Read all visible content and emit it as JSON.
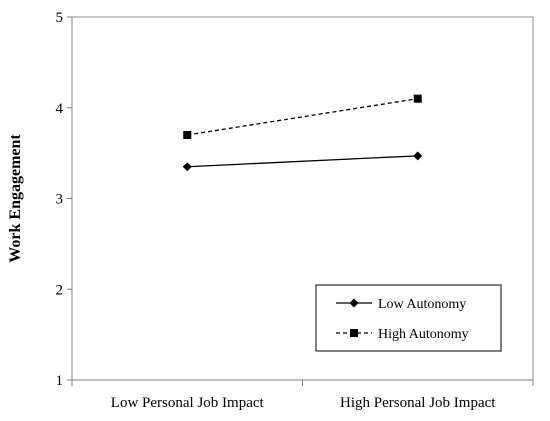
{
  "chart_data": {
    "type": "line",
    "title": "",
    "xlabel": "",
    "ylabel": "Work Engagement",
    "categories": [
      "Low Personal Job Impact",
      "High Personal Job Impact"
    ],
    "ylim": [
      1,
      5
    ],
    "yticks": [
      "1",
      "2",
      "3",
      "4",
      "5"
    ],
    "grid": false,
    "legend_position": "bottom-right",
    "series": [
      {
        "name": "Low Autonomy",
        "values": [
          3.35,
          3.47
        ],
        "marker": "diamond",
        "line_style": "solid",
        "color": "#000000"
      },
      {
        "name": "High Autonomy",
        "values": [
          3.7,
          4.1
        ],
        "marker": "square",
        "line_style": "dashed",
        "color": "#000000"
      }
    ]
  }
}
